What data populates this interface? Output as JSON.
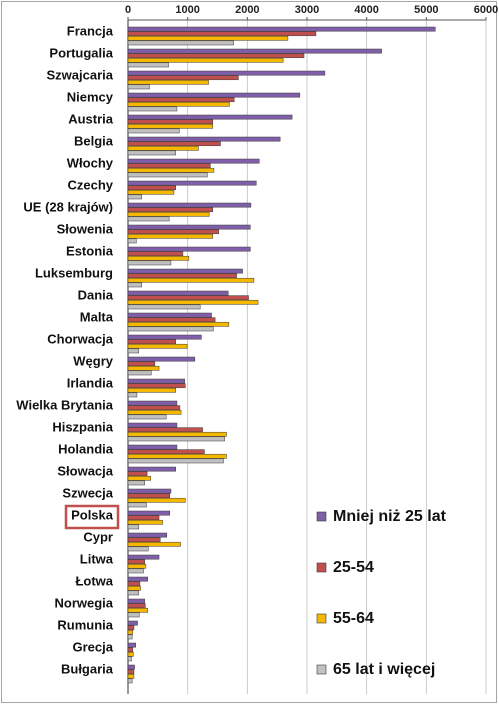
{
  "chart_data": {
    "type": "bar",
    "orientation": "horizontal",
    "xlim": [
      0,
      6000
    ],
    "x_ticks": [
      "0",
      "1000",
      "2000",
      "3000",
      "4000",
      "5000",
      "6000"
    ],
    "x_tick_values": [
      0,
      1000,
      2000,
      3000,
      4000,
      5000,
      6000
    ],
    "x_axis_position": "top",
    "grid": true,
    "legend_position": "bottom-right",
    "highlighted_category": "Polska",
    "categories": [
      "Francja",
      "Portugalia",
      "Szwajcaria",
      "Niemcy",
      "Austria",
      "Belgia",
      "Włochy",
      "Czechy",
      "UE (28 krajów)",
      "Słowenia",
      "Estonia",
      "Luksemburg",
      "Dania",
      "Malta",
      "Chorwacja",
      "Węgry",
      "Irlandia",
      "Wielka Brytania",
      "Hiszpania",
      "Holandia",
      "Słowacja",
      "Szwecja",
      "Polska",
      "Cypr",
      "Litwa",
      "Łotwa",
      "Norwegia",
      "Rumunia",
      "Grecja",
      "Bułgaria"
    ],
    "series": [
      {
        "name": "Mniej niż 25 lat",
        "color": "#7f5fa8",
        "values": [
          5150,
          4250,
          3300,
          2880,
          2750,
          2550,
          2200,
          2150,
          2060,
          2050,
          2050,
          1920,
          1680,
          1400,
          1230,
          1120,
          950,
          820,
          820,
          820,
          800,
          720,
          700,
          650,
          520,
          330,
          280,
          160,
          130,
          110
        ]
      },
      {
        "name": "25-54",
        "color": "#c0504d",
        "values": [
          3150,
          2950,
          1850,
          1780,
          1420,
          1550,
          1380,
          800,
          1420,
          1520,
          920,
          1820,
          2020,
          1460,
          800,
          450,
          960,
          870,
          1250,
          1280,
          320,
          700,
          520,
          540,
          280,
          200,
          290,
          100,
          80,
          100
        ]
      },
      {
        "name": "55-64",
        "color": "#f5b800",
        "values": [
          2680,
          2600,
          1350,
          1700,
          1420,
          1180,
          1440,
          770,
          1360,
          1420,
          1020,
          2110,
          2180,
          1690,
          990,
          520,
          800,
          890,
          1650,
          1650,
          380,
          960,
          580,
          880,
          300,
          210,
          330,
          80,
          90,
          100
        ]
      },
      {
        "name": "65 lat i więcej",
        "color": "#c0c0c0",
        "values": [
          1770,
          680,
          360,
          820,
          860,
          800,
          1330,
          230,
          690,
          140,
          720,
          230,
          1210,
          1430,
          180,
          390,
          150,
          640,
          1620,
          1600,
          280,
          310,
          180,
          340,
          260,
          180,
          190,
          70,
          60,
          70
        ]
      }
    ]
  }
}
